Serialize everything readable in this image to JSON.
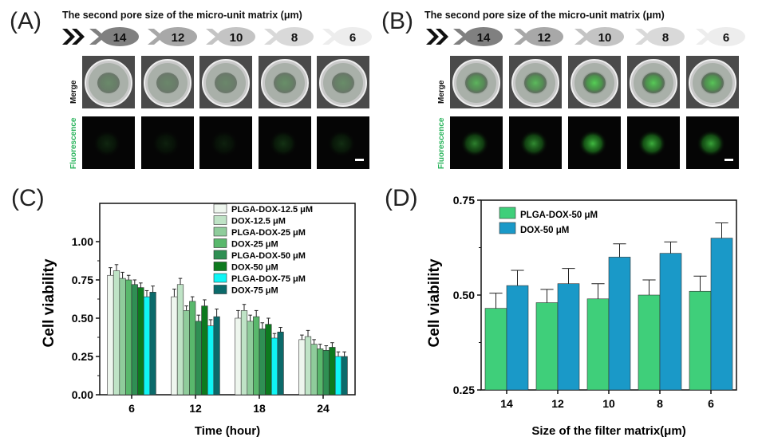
{
  "panels": {
    "A": {
      "letter": "(A)",
      "header": "The second pore size of the micro-unit matrix (μm)",
      "sizes": [
        "14",
        "12",
        "10",
        "8",
        "6"
      ],
      "row_labels": [
        "Merge",
        "Fluorescence"
      ],
      "glow": [
        0.15,
        0.12,
        0.12,
        0.2,
        0.18
      ]
    },
    "B": {
      "letter": "(B)",
      "header": "The second pore size of the micro-unit matrix (μm)",
      "sizes": [
        "14",
        "12",
        "10",
        "8",
        "6"
      ],
      "row_labels": [
        "Merge",
        "Fluorescence"
      ],
      "glow": [
        0.55,
        0.6,
        0.8,
        0.75,
        0.7
      ]
    },
    "C": {
      "letter": "(C)"
    },
    "D": {
      "letter": "(D)"
    }
  },
  "chart_data": [
    {
      "panel": "C",
      "type": "bar",
      "categories": [
        "6",
        "12",
        "18",
        "24"
      ],
      "xlabel": "Time (hour)",
      "ylabel": "Cell viability",
      "ylim": [
        0,
        1.25
      ],
      "yticks": [
        "0.00",
        "0.25",
        "0.50",
        "0.75",
        "1.00"
      ],
      "legend_position": "top-right",
      "series": [
        {
          "name": "PLGA-DOX-12.5 μM",
          "color": "#eef6ee",
          "values": [
            0.78,
            0.64,
            0.5,
            0.36
          ],
          "errors": [
            0.05,
            0.05,
            0.05,
            0.03
          ]
        },
        {
          "name": "DOX-12.5 μM",
          "color": "#bfe3c6",
          "values": [
            0.81,
            0.72,
            0.55,
            0.38
          ],
          "errors": [
            0.04,
            0.04,
            0.04,
            0.04
          ]
        },
        {
          "name": "PLGA-DOX-25 μM",
          "color": "#8fcc9b",
          "values": [
            0.76,
            0.55,
            0.48,
            0.33
          ],
          "errors": [
            0.04,
            0.03,
            0.04,
            0.03
          ]
        },
        {
          "name": "DOX-25 μM",
          "color": "#59b86c",
          "values": [
            0.75,
            0.61,
            0.51,
            0.3
          ],
          "errors": [
            0.03,
            0.03,
            0.04,
            0.03
          ]
        },
        {
          "name": "PLGA-DOX-50 μM",
          "color": "#2f8f53",
          "values": [
            0.72,
            0.48,
            0.43,
            0.29
          ],
          "errors": [
            0.03,
            0.04,
            0.04,
            0.03
          ]
        },
        {
          "name": "DOX-50 μM",
          "color": "#0d7a1e",
          "values": [
            0.7,
            0.58,
            0.46,
            0.31
          ],
          "errors": [
            0.03,
            0.04,
            0.04,
            0.03
          ]
        },
        {
          "name": "PLGA-DOX-75 μM",
          "color": "#0ff5f5",
          "values": [
            0.64,
            0.45,
            0.37,
            0.25
          ],
          "errors": [
            0.04,
            0.04,
            0.03,
            0.03
          ]
        },
        {
          "name": "DOX-75 μM",
          "color": "#0b6a6a",
          "values": [
            0.67,
            0.51,
            0.41,
            0.25
          ],
          "errors": [
            0.04,
            0.05,
            0.03,
            0.03
          ]
        }
      ]
    },
    {
      "panel": "D",
      "type": "bar",
      "categories": [
        "14",
        "12",
        "10",
        "8",
        "6"
      ],
      "xlabel": "Size of the filter matrix(μm)",
      "ylabel": "Cell viability",
      "ylim": [
        0.25,
        0.75
      ],
      "yticks": [
        "0.25",
        "0.50",
        "0.75"
      ],
      "legend_position": "top-left",
      "series": [
        {
          "name": "PLGA-DOX-50 μM",
          "color": "#3fcf7a",
          "values": [
            0.465,
            0.48,
            0.49,
            0.5,
            0.51
          ],
          "errors": [
            0.04,
            0.035,
            0.04,
            0.04,
            0.04
          ]
        },
        {
          "name": "DOX-50 μM",
          "color": "#1a99c8",
          "values": [
            0.525,
            0.53,
            0.6,
            0.61,
            0.65
          ],
          "errors": [
            0.04,
            0.04,
            0.035,
            0.03,
            0.04
          ]
        }
      ]
    }
  ]
}
